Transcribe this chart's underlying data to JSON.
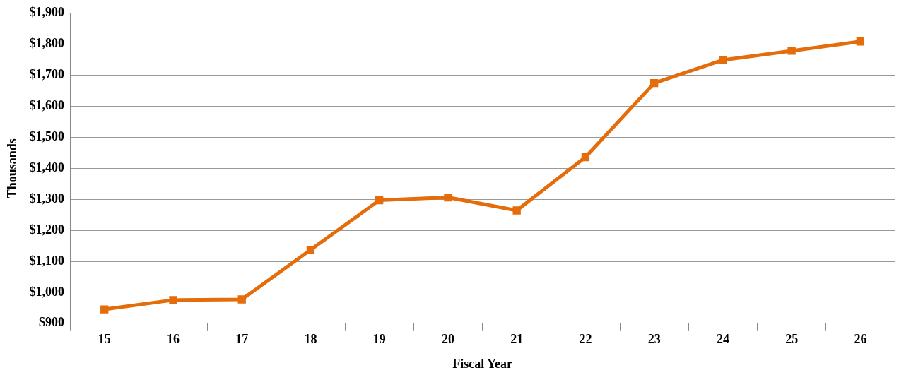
{
  "chart_data": {
    "type": "line",
    "xlabel": "Fiscal Year",
    "ylabel": "Thousands",
    "categories": [
      "15",
      "16",
      "17",
      "18",
      "19",
      "20",
      "21",
      "22",
      "23",
      "24",
      "25",
      "26"
    ],
    "series": [
      {
        "color": "#e46c0a",
        "values": [
          945,
          975,
          977,
          1137,
          1297,
          1306,
          1264,
          1436,
          1675,
          1749,
          1779,
          1809
        ]
      }
    ],
    "ylim": [
      900,
      1900
    ],
    "yticks": [
      {
        "value": 900,
        "label": "$900"
      },
      {
        "value": 1000,
        "label": "$1,000"
      },
      {
        "value": 1100,
        "label": "$1,100"
      },
      {
        "value": 1200,
        "label": "$1,200"
      },
      {
        "value": 1300,
        "label": "$1,300"
      },
      {
        "value": 1400,
        "label": "$1,400"
      },
      {
        "value": 1500,
        "label": "$1,500"
      },
      {
        "value": 1600,
        "label": "$1,600"
      },
      {
        "value": 1700,
        "label": "$1,700"
      },
      {
        "value": 1800,
        "label": "$1,800"
      },
      {
        "value": 1900,
        "label": "$1,900"
      }
    ],
    "grid": "y",
    "legend": false,
    "marker": "square",
    "line_style": "solid"
  }
}
